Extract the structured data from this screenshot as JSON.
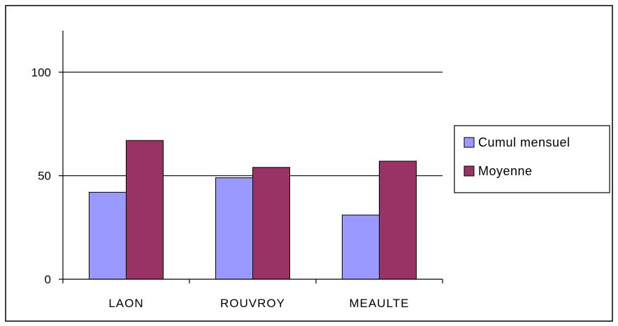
{
  "chart_data": {
    "type": "bar",
    "categories": [
      "LAON",
      "ROUVROY",
      "MEAULTE"
    ],
    "series": [
      {
        "name": "Cumul mensuel",
        "values": [
          42,
          49,
          31
        ],
        "color": "#9999ff"
      },
      {
        "name": "Moyenne",
        "values": [
          67,
          54,
          57
        ],
        "color": "#993366"
      }
    ],
    "ylim": [
      0,
      120
    ],
    "yticks": [
      {
        "value": 0,
        "label": "0"
      },
      {
        "value": 50,
        "label": "50"
      },
      {
        "value": 100,
        "label": "100"
      }
    ],
    "gridlines": [
      50,
      100
    ],
    "title": "",
    "xlabel": "",
    "ylabel": "",
    "legend_position": "right",
    "colors": {
      "background": "#ffffff",
      "border": "#000000",
      "grid": "#000000"
    }
  }
}
